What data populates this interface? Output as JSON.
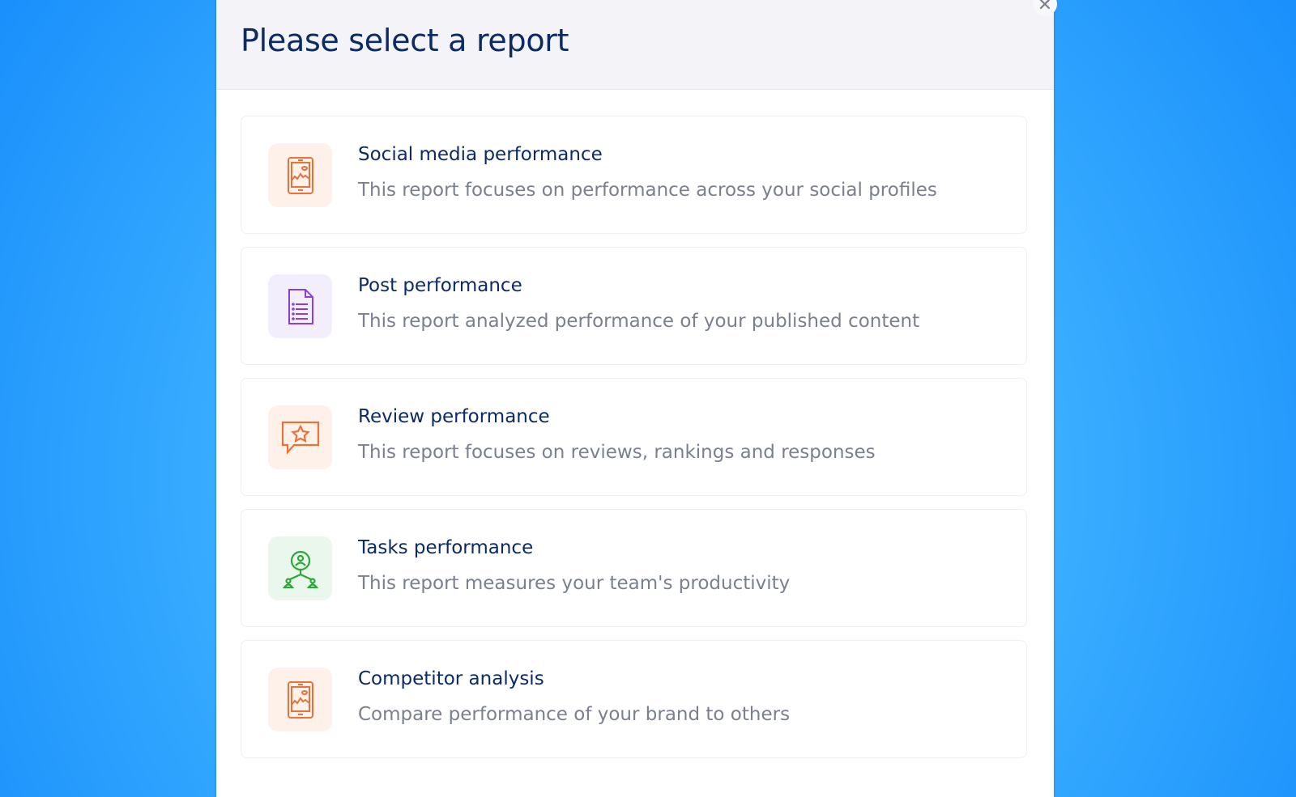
{
  "dialog": {
    "title": "Please select a report",
    "close_icon": "close-icon",
    "close_label": "✕"
  },
  "reports": [
    {
      "title": "Social media performance",
      "description": "This report focuses on performance across your social profiles",
      "icon": "mobile-chart-icon",
      "icon_color": "#e8733a",
      "icon_bg": "#fdf1ea"
    },
    {
      "title": "Post performance",
      "description": "This report analyzed performance of your published content",
      "icon": "document-list-icon",
      "icon_color": "#8a3fd6",
      "icon_bg": "#f3eefb"
    },
    {
      "title": "Review performance",
      "description": "This report focuses on reviews, rankings and responses",
      "icon": "star-chat-icon",
      "icon_color": "#e8733a",
      "icon_bg": "#fdf1ea"
    },
    {
      "title": "Tasks performance",
      "description": "This report measures your team's productivity",
      "icon": "team-icon",
      "icon_color": "#2fa63a",
      "icon_bg": "#eaf7ec"
    },
    {
      "title": "Competitor analysis",
      "description": "Compare performance of your brand to others",
      "icon": "mobile-chart-icon",
      "icon_color": "#e8733a",
      "icon_bg": "#fdf1ea"
    }
  ]
}
